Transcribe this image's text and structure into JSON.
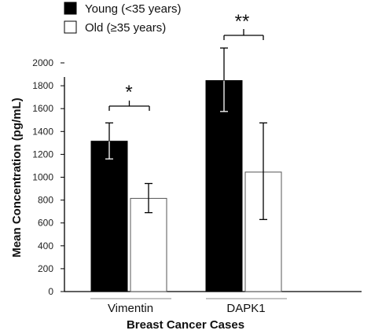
{
  "chart_data": {
    "type": "bar",
    "xlabel": "Breast Cancer Cases",
    "ylabel": "Mean Concentration (pg/mL)",
    "ylim": [
      0,
      2000
    ],
    "yticks": [
      0,
      200,
      400,
      600,
      800,
      1000,
      1200,
      1400,
      1600,
      1800,
      2000
    ],
    "grid": false,
    "legend_position": "top-left",
    "categories": [
      "Vimentin",
      "DAPK1"
    ],
    "series": [
      {
        "name": "Young (<35 years)",
        "color": "#000000",
        "values": [
          1315,
          1845
        ],
        "error_low": [
          1160,
          1575
        ],
        "error_high": [
          1475,
          2130
        ]
      },
      {
        "name": "Old (≥35 years)",
        "color": "#ffffff",
        "values": [
          815,
          1045
        ],
        "error_low": [
          690,
          630
        ],
        "error_high": [
          945,
          1475
        ]
      }
    ],
    "significance": [
      "*",
      "**"
    ]
  }
}
